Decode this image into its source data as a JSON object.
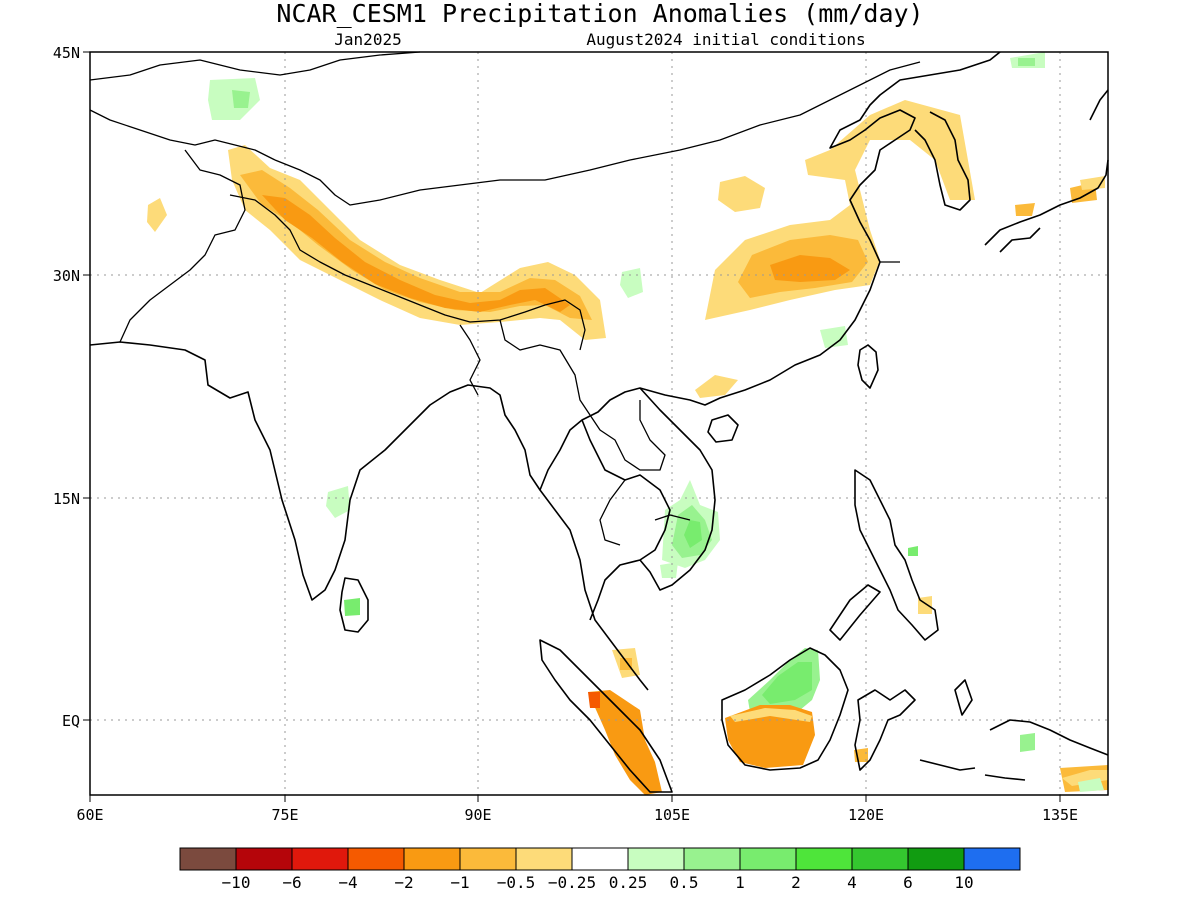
{
  "title": "NCAR_CESM1 Precipitation Anomalies (mm/day)",
  "subtitle_left": "Jan2025",
  "subtitle_right": "August2024 initial conditions",
  "map": {
    "lon_range": [
      60,
      140
    ],
    "lat_range": [
      -5,
      45
    ],
    "lon_ticks": [
      "60E",
      "75E",
      "90E",
      "105E",
      "120E",
      "135E"
    ],
    "lat_ticks": [
      "45N",
      "30N",
      "15N",
      "EQ"
    ],
    "grid": true
  },
  "colorbar": {
    "colors": [
      "#7b4a3e",
      "#b5050a",
      "#e0180c",
      "#f55a00",
      "#f99a12",
      "#fbba3a",
      "#fddb79",
      "#ffffff",
      "#c8fdc0",
      "#98f28f",
      "#78ec6e",
      "#4ee53a",
      "#34c72f",
      "#119c11",
      "#1e6ef0"
    ],
    "labels": [
      "-10",
      "-6",
      "-4",
      "-2",
      "-1",
      "-0.5",
      "-0.25",
      "0.25",
      "0.5",
      "1",
      "2",
      "4",
      "6",
      "10"
    ]
  }
}
